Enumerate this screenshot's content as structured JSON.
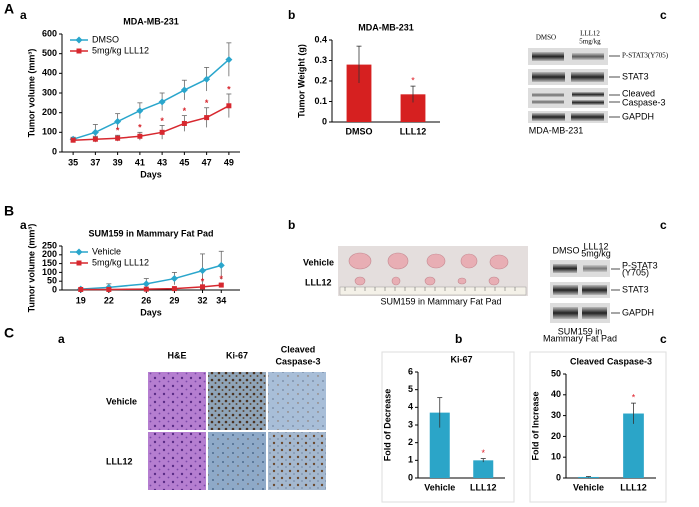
{
  "chart_data": [
    {
      "type": "line",
      "title": "MDA-MB-231",
      "xlabel": "Days",
      "ylabel": "Tumor volume (mm³)",
      "x": [
        35,
        37,
        39,
        41,
        43,
        45,
        47,
        49
      ],
      "xlim": [
        34,
        50
      ],
      "xticks": [
        35,
        37,
        39,
        41,
        43,
        45,
        47,
        49
      ],
      "ylim": [
        0,
        600
      ],
      "yticks": [
        0,
        100,
        200,
        300,
        400,
        500,
        600
      ],
      "legend": "upper left",
      "series": [
        {
          "name": "DMSO",
          "color": "#2aa6cc",
          "marker": "diamond",
          "values": [
            65,
            100,
            155,
            210,
            255,
            315,
            370,
            470
          ],
          "errors": [
            10,
            40,
            40,
            40,
            45,
            50,
            60,
            85
          ]
        },
        {
          "name": "5mg/kg LLL12",
          "color": "#d7282f",
          "marker": "square",
          "values": [
            60,
            65,
            70,
            80,
            100,
            145,
            175,
            235
          ],
          "errors": [
            10,
            15,
            15,
            20,
            35,
            40,
            50,
            60
          ],
          "annotations": [
            null,
            null,
            "*",
            "*",
            "*",
            "*",
            "*",
            "*"
          ]
        }
      ]
    },
    {
      "type": "bar",
      "title": "MDA-MB-231",
      "ylabel": "Tumor Weight (g)",
      "categories": [
        "DMSO",
        "LLL12"
      ],
      "values": [
        0.28,
        0.135
      ],
      "errors": [
        0.09,
        0.04
      ],
      "annotations": [
        null,
        "*"
      ],
      "color": "#d62020",
      "ylim": [
        0,
        0.4
      ],
      "yticks": [
        0,
        0.1,
        0.2,
        0.3,
        0.4
      ]
    },
    {
      "type": "line",
      "title": "SUM159 in Mammary Fat Pad",
      "xlabel": "Days",
      "ylabel": "Tumor volume (mm³)",
      "x": [
        19,
        22,
        26,
        29,
        32,
        34
      ],
      "xlim": [
        17,
        36
      ],
      "xticks": [
        19,
        22,
        26,
        29,
        32,
        34
      ],
      "ylim": [
        0,
        250
      ],
      "yticks": [
        0,
        50,
        100,
        150,
        200,
        250
      ],
      "legend": "upper left",
      "series": [
        {
          "name": "Vehicle",
          "color": "#2aa6cc",
          "marker": "diamond",
          "values": [
            5,
            15,
            35,
            65,
            110,
            140
          ],
          "errors": [
            3,
            20,
            30,
            35,
            95,
            80
          ]
        },
        {
          "name": "5mg/kg LLL12",
          "color": "#d7282f",
          "marker": "square",
          "values": [
            3,
            3,
            5,
            8,
            18,
            28
          ],
          "errors": [
            2,
            2,
            3,
            3,
            5,
            7
          ],
          "annotations": [
            null,
            null,
            null,
            null,
            "*",
            "*"
          ]
        }
      ]
    },
    {
      "type": "bar",
      "title": "Ki-67",
      "ylabel": "Fold of Decrease",
      "categories": [
        "Vehicle",
        "LLL12"
      ],
      "values": [
        3.7,
        1.0
      ],
      "errors": [
        0.85,
        0.1
      ],
      "annotations": [
        null,
        "*"
      ],
      "color": "#2ba5c8",
      "ylim": [
        0,
        6
      ],
      "yticks": [
        0,
        1,
        2,
        3,
        4,
        5,
        6
      ]
    },
    {
      "type": "bar",
      "title": "Cleaved Caspase-3",
      "ylabel": "Fold of Increase",
      "categories": [
        "Vehicle",
        "LLL12"
      ],
      "values": [
        0.5,
        31
      ],
      "errors": [
        0.2,
        5
      ],
      "annotations": [
        null,
        "*"
      ],
      "color": "#2ba5c8",
      "ylim": [
        0,
        50
      ],
      "yticks": [
        0,
        10,
        20,
        30,
        40,
        50
      ]
    }
  ],
  "panels": {
    "A": {
      "letter": "A",
      "a": "a",
      "b": "b",
      "c": "c",
      "blot": {
        "lanes": [
          "DMSO",
          [
            "LLL12",
            "5mg/kg"
          ]
        ],
        "bands": [
          "P-STAT3(Y705)",
          "STAT3",
          [
            "Cleaved",
            "Caspase-3"
          ],
          "GAPDH"
        ],
        "caption": "MDA-MB-231"
      }
    },
    "B": {
      "letter": "B",
      "a": "a",
      "b": "b",
      "c": "c",
      "photo": {
        "rows": [
          "Vehicle",
          "LLL12"
        ],
        "caption": "SUM159 in Mammary Fat Pad"
      },
      "blot": {
        "lanes": [
          "DMSO",
          [
            "LLL12",
            "5mg/kg"
          ]
        ],
        "bands": [
          [
            "P-STAT3",
            "(Y705)"
          ],
          "STAT3",
          "GAPDH"
        ],
        "caption": [
          "SUM159 in",
          "Mammary Fat Pad"
        ]
      }
    },
    "C": {
      "letter": "C",
      "a": "a",
      "b": "b",
      "c": "c",
      "histology": {
        "columns": [
          "H&E",
          "Ki-67",
          [
            "Cleaved",
            "Caspase-3"
          ]
        ],
        "rows": [
          "Vehicle",
          "LLL12"
        ]
      }
    }
  }
}
